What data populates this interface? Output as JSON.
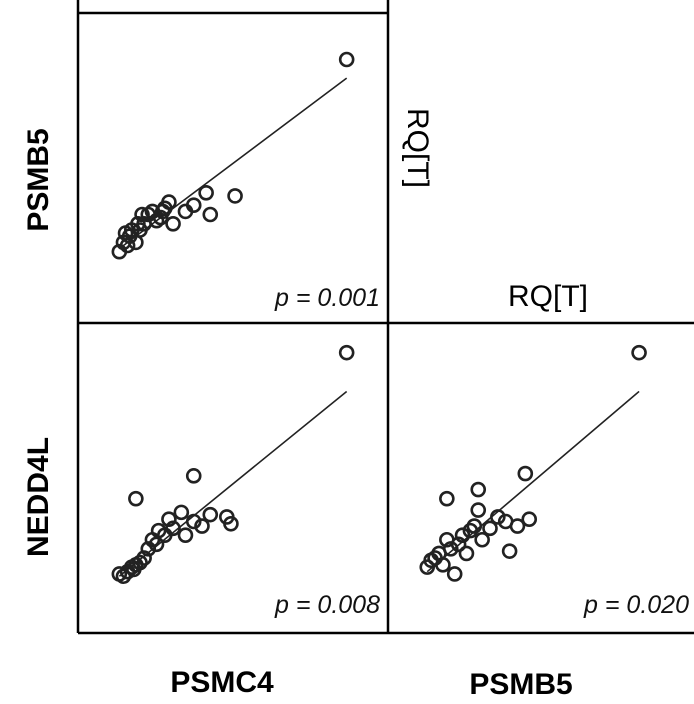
{
  "row_labels": [
    "PSMB5",
    "NEDD4L"
  ],
  "col_labels": [
    "PSMC4",
    "PSMB5"
  ],
  "diagonal_label_vertical": "RQ[T]",
  "diagonal_label_horizontal": "RQ[T]",
  "chart_data": [
    {
      "type": "scatter",
      "x_variable": "PSMC4",
      "y_variable": "PSMB5",
      "annotation": "p = 0.001",
      "points": [
        [
          1.0,
          2.3
        ],
        [
          1.1,
          2.6
        ],
        [
          1.2,
          2.5
        ],
        [
          1.25,
          2.8
        ],
        [
          1.3,
          3.0
        ],
        [
          1.4,
          2.6
        ],
        [
          1.5,
          3.0
        ],
        [
          1.55,
          3.5
        ],
        [
          1.6,
          3.2
        ],
        [
          1.7,
          3.5
        ],
        [
          1.8,
          3.6
        ],
        [
          1.9,
          3.3
        ],
        [
          2.0,
          3.4
        ],
        [
          2.1,
          3.7
        ],
        [
          2.2,
          3.9
        ],
        [
          2.3,
          3.2
        ],
        [
          2.6,
          3.6
        ],
        [
          2.8,
          3.8
        ],
        [
          3.1,
          4.2
        ],
        [
          3.2,
          3.5
        ],
        [
          3.8,
          4.1
        ],
        [
          6.5,
          8.5
        ],
        [
          1.15,
          2.9
        ],
        [
          1.45,
          3.2
        ],
        [
          2.05,
          3.6
        ]
      ],
      "fit": {
        "x": [
          1.0,
          6.5
        ],
        "y": [
          2.4,
          7.9
        ]
      },
      "xlim": [
        0,
        7.5
      ],
      "ylim": [
        0,
        10
      ]
    },
    {
      "type": "scatter",
      "x_variable": "PSMC4",
      "y_variable": "NEDD4L",
      "annotation": "p = 0.008",
      "points": [
        [
          1.0,
          2.5
        ],
        [
          1.1,
          2.4
        ],
        [
          1.2,
          2.6
        ],
        [
          1.3,
          2.8
        ],
        [
          1.4,
          2.9
        ],
        [
          1.5,
          3.0
        ],
        [
          1.6,
          3.2
        ],
        [
          1.7,
          3.6
        ],
        [
          1.8,
          4.0
        ],
        [
          1.9,
          3.8
        ],
        [
          2.1,
          4.2
        ],
        [
          2.3,
          4.5
        ],
        [
          2.5,
          5.2
        ],
        [
          2.6,
          4.2
        ],
        [
          2.8,
          4.8
        ],
        [
          3.0,
          4.6
        ],
        [
          3.2,
          5.1
        ],
        [
          3.6,
          5.0
        ],
        [
          3.7,
          4.7
        ],
        [
          1.4,
          5.8
        ],
        [
          2.8,
          6.8
        ],
        [
          6.5,
          12.2
        ],
        [
          1.35,
          2.7
        ],
        [
          1.95,
          4.4
        ],
        [
          2.2,
          4.9
        ]
      ],
      "fit": {
        "x": [
          1.0,
          6.5
        ],
        "y": [
          2.4,
          10.5
        ]
      },
      "xlim": [
        0,
        7.5
      ],
      "ylim": [
        0,
        13.5
      ]
    },
    {
      "type": "scatter",
      "x_variable": "PSMB5",
      "y_variable": "NEDD4L",
      "annotation": "p = 0.020",
      "points": [
        [
          2.0,
          2.8
        ],
        [
          2.1,
          3.1
        ],
        [
          2.3,
          3.4
        ],
        [
          2.4,
          2.9
        ],
        [
          2.5,
          4.0
        ],
        [
          2.6,
          3.6
        ],
        [
          2.7,
          2.5
        ],
        [
          2.8,
          3.8
        ],
        [
          2.9,
          4.2
        ],
        [
          3.0,
          3.4
        ],
        [
          3.2,
          4.6
        ],
        [
          3.3,
          5.3
        ],
        [
          3.4,
          4.0
        ],
        [
          3.6,
          4.5
        ],
        [
          3.8,
          5.0
        ],
        [
          4.0,
          4.8
        ],
        [
          4.1,
          3.5
        ],
        [
          4.3,
          4.6
        ],
        [
          4.6,
          4.9
        ],
        [
          2.5,
          5.8
        ],
        [
          3.3,
          6.2
        ],
        [
          4.5,
          6.9
        ],
        [
          7.4,
          12.2
        ],
        [
          2.2,
          3.2
        ],
        [
          3.1,
          4.4
        ]
      ],
      "fit": {
        "x": [
          2.0,
          7.4
        ],
        "y": [
          2.6,
          10.5
        ]
      },
      "xlim": [
        1,
        8.8
      ],
      "ylim": [
        0,
        13.5
      ]
    }
  ]
}
